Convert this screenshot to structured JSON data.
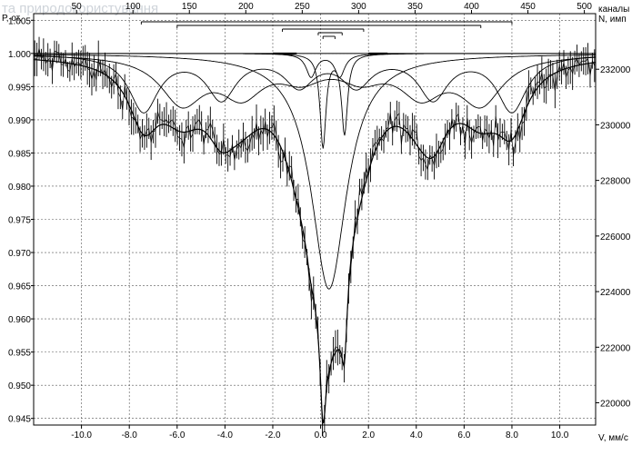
{
  "watermark": "та природокористування",
  "chart_data": {
    "type": "line",
    "x_axis_name": "V, мм/с",
    "y_axis_name": "Р, от.",
    "top_axis_name": "каналы",
    "right_axis_name": "N, имп",
    "xlim": [
      -12.0,
      11.5
    ],
    "ylim": [
      0.944,
      1.006
    ],
    "channel_lim": [
      12,
      510
    ],
    "counts_lim": [
      219200,
      234000
    ],
    "x_ticks": [
      -10,
      -8,
      -6,
      -4,
      -2,
      0,
      2,
      4,
      6,
      8,
      10
    ],
    "x_tick_labels": [
      "-10.0",
      "-8.0",
      "-6.0",
      "-4.0",
      "-2.0",
      "0.0",
      "2.0",
      "4.0",
      "6.0",
      "8.0",
      "10.0"
    ],
    "y_ticks": [
      1.005,
      1.0,
      0.995,
      0.99,
      0.985,
      0.98,
      0.975,
      0.97,
      0.965,
      0.96,
      0.955,
      0.95,
      0.945
    ],
    "y_tick_labels": [
      "1.005",
      "1.000",
      "0.995",
      "0.990",
      "0.985",
      "0.980",
      "0.975",
      "0.970",
      "0.965",
      "0.960",
      "0.955",
      "0.950",
      "0.945"
    ],
    "top_ticks": [
      50,
      100,
      150,
      200,
      250,
      300,
      350,
      400,
      450,
      500
    ],
    "top_tick_labels": [
      "50",
      "100",
      "150",
      "200",
      "250",
      "300",
      "350",
      "400",
      "450",
      "500"
    ],
    "right_ticks": [
      232000,
      230000,
      228000,
      226000,
      224000,
      222000,
      220000
    ],
    "right_tick_labels": [
      "232000",
      "230000",
      "228000",
      "226000",
      "224000",
      "222000",
      "220000"
    ],
    "grid": true,
    "baseline": 1.0,
    "components": [
      {
        "type": "sextet",
        "lines": [
          -7.4,
          -4.15,
          -0.9,
          1.5,
          4.7,
          8.0
        ],
        "depths": [
          0.0085,
          0.0065,
          0.0045,
          0.0045,
          0.0065,
          0.0085
        ],
        "width": 1.5
      },
      {
        "type": "sextet",
        "lines": [
          -5.8,
          -3.3,
          -0.8,
          1.7,
          4.2,
          6.7
        ],
        "depths": [
          0.007,
          0.0055,
          0.003,
          0.003,
          0.0055,
          0.007
        ],
        "width": 2.2
      },
      {
        "type": "doublet",
        "lines": [
          0.35
        ],
        "depths": [
          0.0355
        ],
        "width": 1.8
      },
      {
        "type": "doublet",
        "lines": [
          0.1,
          1.0
        ],
        "depths": [
          0.014,
          0.012
        ],
        "width": 0.3
      },
      {
        "type": "doublet",
        "lines": [
          -0.4,
          0.8
        ],
        "depths": [
          0.0035,
          0.0035
        ],
        "width": 0.5
      }
    ],
    "marker_bars": [
      {
        "from": -7.5,
        "to": 8.0,
        "level": 1
      },
      {
        "from": -6.0,
        "to": 6.7,
        "level": 2
      },
      {
        "from": -1.6,
        "to": 1.8,
        "level": 3
      },
      {
        "from": -0.1,
        "to": 0.9,
        "level": 4
      },
      {
        "from": 0.1,
        "to": 0.6,
        "level": 5
      }
    ],
    "short_lines": [
      {
        "from": -2.0,
        "to": -1.0,
        "y": 1.0
      },
      {
        "from": 2.0,
        "to": 2.8,
        "y": 1.0
      }
    ],
    "experimental_sample_count": 256,
    "noise_amplitude": 0.0023
  }
}
